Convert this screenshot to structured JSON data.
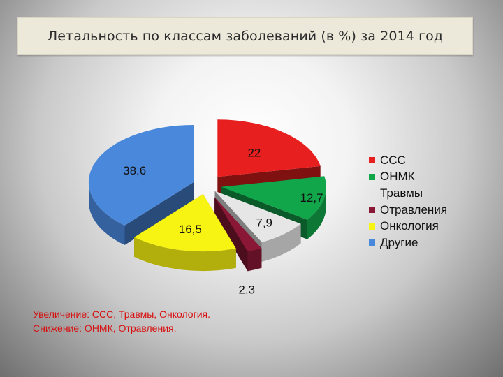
{
  "title": "Летальность по классам заболеваний (в %) за 2014 год",
  "notes": {
    "line1": "Увеличение: ССС, Травмы, Онкология.",
    "line2": "Снижение: ОНМК, Отравления."
  },
  "chart_data": {
    "type": "pie",
    "style": "3d-exploded",
    "legend_position": "right",
    "categories": [
      "ССС",
      "ОНМК",
      "Травмы",
      "Отравления",
      "Онкология",
      "Другие"
    ],
    "values": [
      22,
      12.7,
      7.9,
      2.3,
      16.5,
      38.6
    ],
    "value_labels": [
      "22",
      "12,7",
      "7,9",
      "2,3",
      "16,5",
      "38,6"
    ],
    "colors": [
      "#e81f1f",
      "#12a64a",
      "#e6e6e6",
      "#8a1735",
      "#f7f312",
      "#4a88dc"
    ]
  }
}
